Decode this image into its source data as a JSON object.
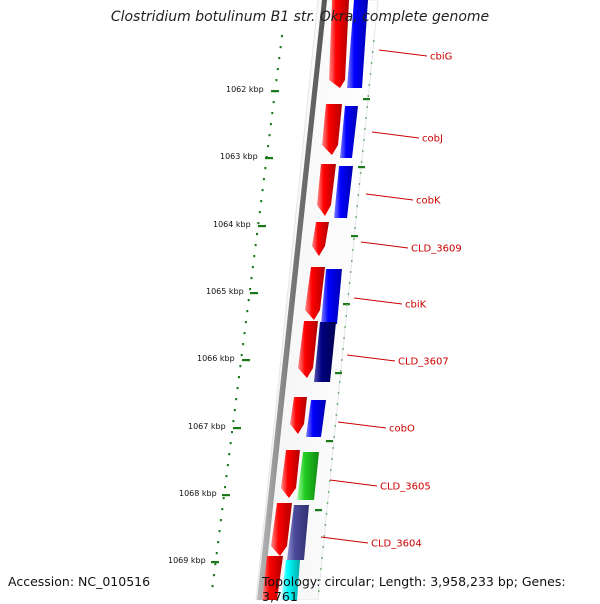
{
  "title": "Clostridium botulinum B1 str. Okra, complete genome",
  "accession": "Accession: NC_010516",
  "summary": "Topology: circular; Length: 3,958,233 bp; Genes: 3,761",
  "scale_ticks": [
    "1062 kbp",
    "1063 kbp",
    "1064 kbp",
    "1065 kbp",
    "1066 kbp",
    "1067 kbp",
    "1068 kbp",
    "1069 kbp"
  ],
  "genes": [
    "cbiG",
    "cobJ",
    "cobK",
    "CLD_3609",
    "cbiK",
    "CLD_3607",
    "cobO",
    "CLD_3605",
    "CLD_3604"
  ],
  "colors": {
    "backbone": "#888888",
    "tick": "#1a7a1a",
    "cds_forward": "#ff0000",
    "cds_blue": "#0000ff",
    "cds_navy": "#000080",
    "cds_green": "#22cc22",
    "cds_slate": "#4a4a9a",
    "cds_cyan": "#00ffff",
    "label": "#cc0000"
  }
}
